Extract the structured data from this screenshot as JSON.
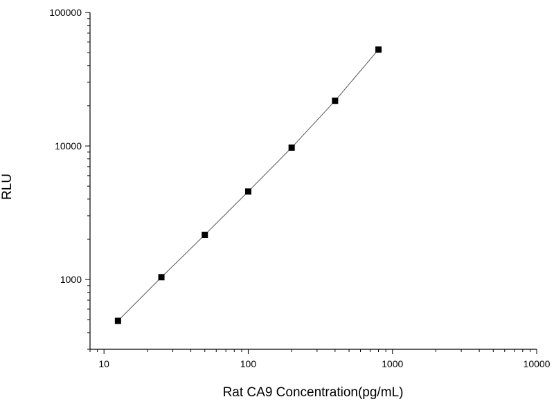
{
  "chart_data": {
    "type": "scatter",
    "title": "",
    "xlabel": "Rat CA9 Concentration(pg/mL)",
    "ylabel": "RLU",
    "xscale": "log",
    "yscale": "log",
    "xlim": [
      8,
      10000
    ],
    "ylim": [
      300,
      100000
    ],
    "xticks": [
      10,
      100,
      1000,
      10000
    ],
    "xtick_labels": [
      "10",
      "100",
      "1000",
      "10000"
    ],
    "yticks": [
      1000,
      10000,
      100000
    ],
    "ytick_labels": [
      "1000",
      "10000",
      "100000"
    ],
    "grid": false,
    "legend": "none",
    "marker": "square",
    "marker_color": "#000000",
    "line_color": "#555555",
    "fit_line": true,
    "series": [
      {
        "x": [
          12.5,
          25,
          50,
          100,
          200,
          400,
          800
        ],
        "y": [
          490,
          1040,
          2160,
          4560,
          9720,
          21800,
          52700
        ]
      }
    ]
  }
}
